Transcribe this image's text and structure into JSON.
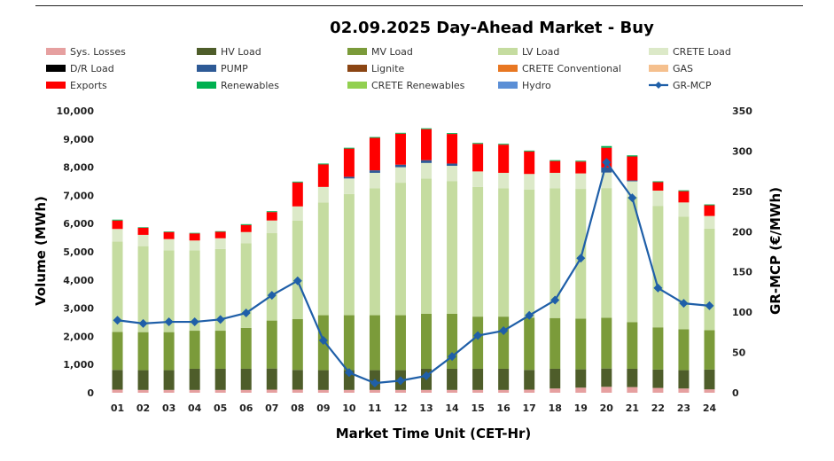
{
  "chart_data": {
    "type": "bar",
    "title": "02.09.2025  Day-Ahead Market - Buy",
    "xlabel": "Market Time Unit (CET-Hr)",
    "ylabel": "Volume (MWh)",
    "y2label": "GR-MCP (€/MWh)",
    "ylim": [
      0,
      10000
    ],
    "y2lim": [
      0,
      350
    ],
    "yticks": [
      "0",
      "1,000",
      "2,000",
      "3,000",
      "4,000",
      "5,000",
      "6,000",
      "7,000",
      "8,000",
      "9,000",
      "10,000"
    ],
    "y2ticks": [
      "0",
      "50",
      "100",
      "150",
      "200",
      "250",
      "300",
      "350"
    ],
    "grid": false,
    "legend_position": "top",
    "categories": [
      "01",
      "02",
      "03",
      "04",
      "05",
      "06",
      "07",
      "08",
      "09",
      "10",
      "11",
      "12",
      "13",
      "14",
      "15",
      "16",
      "17",
      "18",
      "19",
      "20",
      "21",
      "22",
      "23",
      "24"
    ],
    "series": [
      {
        "name": "Sys. Losses",
        "kind": "bar",
        "color": "#E6A0A0",
        "values": [
          110,
          100,
          100,
          100,
          100,
          100,
          110,
          110,
          100,
          100,
          100,
          100,
          100,
          100,
          100,
          100,
          110,
          150,
          180,
          210,
          200,
          170,
          150,
          120
        ]
      },
      {
        "name": "HV Load",
        "kind": "bar",
        "color": "#4E5D2A",
        "values": [
          700,
          700,
          700,
          750,
          750,
          750,
          750,
          700,
          700,
          700,
          700,
          700,
          750,
          750,
          750,
          750,
          700,
          700,
          650,
          650,
          650,
          650,
          650,
          700
        ]
      },
      {
        "name": "MV Load",
        "kind": "bar",
        "color": "#7B9B3A",
        "values": [
          1350,
          1350,
          1350,
          1350,
          1350,
          1450,
          1700,
          1800,
          1950,
          1950,
          1950,
          1950,
          1950,
          1950,
          1850,
          1850,
          1850,
          1800,
          1800,
          1800,
          1650,
          1500,
          1450,
          1400
        ]
      },
      {
        "name": "LV Load",
        "kind": "bar",
        "color": "#C5DCA0",
        "values": [
          3200,
          3050,
          2900,
          2850,
          2900,
          3000,
          3100,
          3500,
          4000,
          4300,
          4500,
          4700,
          4800,
          4700,
          4600,
          4550,
          4550,
          4600,
          4600,
          4600,
          4450,
          4300,
          4000,
          3600
        ]
      },
      {
        "name": "CRETE Load",
        "kind": "bar",
        "color": "#DCE9C8",
        "values": [
          450,
          400,
          400,
          350,
          380,
          400,
          450,
          500,
          550,
          550,
          550,
          550,
          550,
          550,
          550,
          550,
          550,
          550,
          550,
          550,
          550,
          550,
          500,
          450
        ]
      },
      {
        "name": "D/R Load",
        "kind": "bar",
        "color": "#000000",
        "values": [
          0,
          0,
          0,
          0,
          0,
          0,
          0,
          0,
          0,
          0,
          0,
          0,
          0,
          0,
          0,
          0,
          0,
          0,
          0,
          0,
          0,
          0,
          0,
          0
        ]
      },
      {
        "name": "PUMP",
        "kind": "bar",
        "color": "#2E5A96",
        "values": [
          0,
          0,
          0,
          0,
          0,
          0,
          0,
          0,
          0,
          60,
          90,
          90,
          100,
          80,
          0,
          0,
          0,
          0,
          0,
          180,
          30,
          0,
          0,
          0
        ]
      },
      {
        "name": "Lignite",
        "kind": "bar",
        "color": "#8B4513",
        "values": [
          0,
          0,
          0,
          0,
          0,
          0,
          0,
          0,
          0,
          0,
          0,
          0,
          0,
          0,
          0,
          0,
          0,
          0,
          0,
          0,
          0,
          0,
          0,
          0
        ]
      },
      {
        "name": "CRETE Conventional",
        "kind": "bar",
        "color": "#E87722",
        "values": [
          0,
          0,
          0,
          0,
          0,
          0,
          0,
          0,
          0,
          0,
          0,
          0,
          0,
          0,
          0,
          0,
          0,
          0,
          0,
          0,
          0,
          0,
          0,
          0
        ]
      },
      {
        "name": "GAS",
        "kind": "bar",
        "color": "#F5C08E",
        "values": [
          0,
          0,
          0,
          0,
          0,
          0,
          0,
          0,
          0,
          0,
          0,
          0,
          0,
          0,
          0,
          0,
          0,
          0,
          0,
          0,
          0,
          0,
          0,
          0
        ]
      },
      {
        "name": "Exports",
        "kind": "bar",
        "color": "#FF0000",
        "values": [
          300,
          250,
          250,
          250,
          230,
          250,
          300,
          850,
          800,
          1000,
          1150,
          1100,
          1100,
          1050,
          980,
          1000,
          800,
          420,
          420,
          700,
          850,
          300,
          400,
          380
        ]
      },
      {
        "name": "Renewables",
        "kind": "bar",
        "color": "#00B050",
        "values": [
          30,
          20,
          20,
          20,
          20,
          30,
          30,
          30,
          30,
          30,
          30,
          30,
          30,
          30,
          30,
          30,
          30,
          30,
          30,
          60,
          40,
          30,
          30,
          30
        ]
      },
      {
        "name": "CRETE Renewables",
        "kind": "bar",
        "color": "#92D050",
        "values": [
          0,
          0,
          0,
          0,
          0,
          0,
          0,
          0,
          0,
          0,
          0,
          0,
          0,
          0,
          0,
          0,
          0,
          0,
          0,
          0,
          0,
          0,
          0,
          0
        ]
      },
      {
        "name": "Hydro",
        "kind": "bar",
        "color": "#5B8FD6",
        "values": [
          0,
          0,
          0,
          0,
          0,
          0,
          0,
          0,
          0,
          0,
          0,
          0,
          0,
          0,
          0,
          0,
          0,
          0,
          0,
          0,
          0,
          0,
          0,
          0
        ]
      },
      {
        "name": "GR-MCP",
        "kind": "line",
        "axis": "right",
        "color": "#1F5FA8",
        "values": [
          90,
          86,
          88,
          88,
          91,
          99,
          121,
          139,
          65,
          25,
          12,
          15,
          21,
          45,
          71,
          77,
          96,
          115,
          167,
          286,
          242,
          130,
          111,
          108
        ]
      }
    ]
  }
}
